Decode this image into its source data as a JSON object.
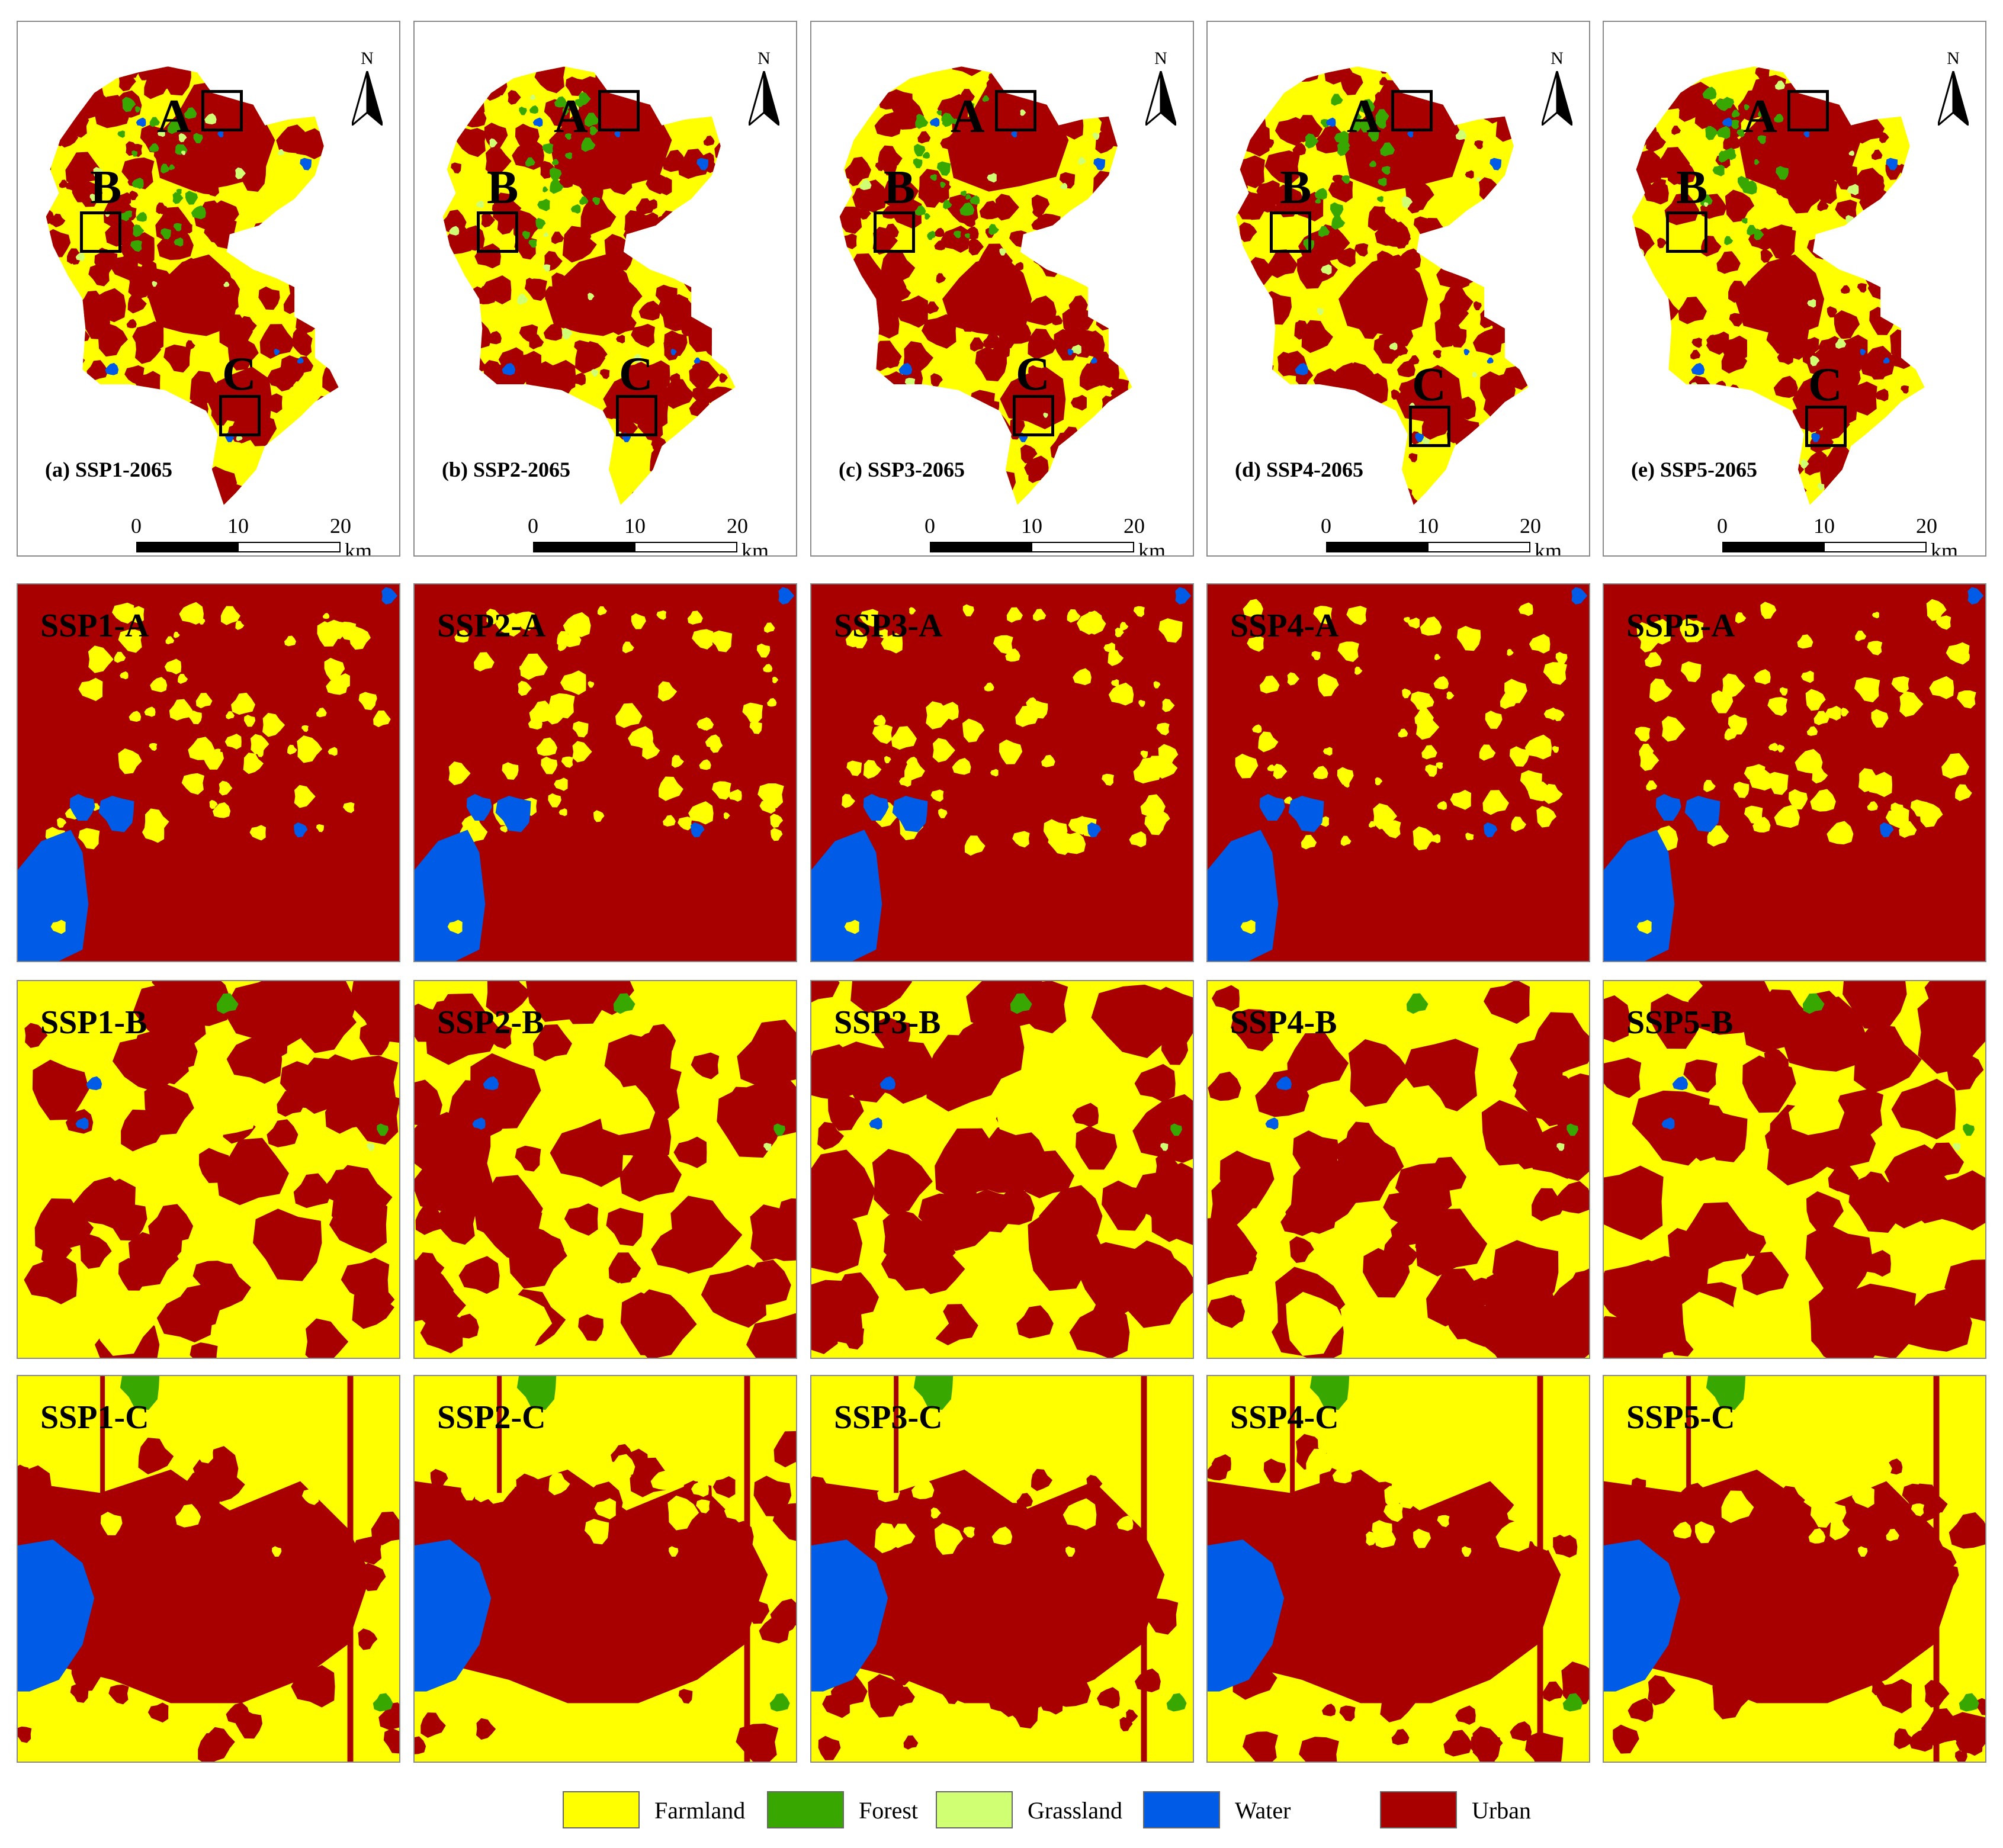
{
  "classes": {
    "farmland": {
      "label": "Farmland",
      "color": "#FFFF00"
    },
    "forest": {
      "label": "Forest",
      "color": "#38A800"
    },
    "grassland": {
      "label": "Grassland",
      "color": "#D1FF73"
    },
    "water": {
      "label": "Water",
      "color": "#005CE6"
    },
    "urban": {
      "label": "Urban",
      "color": "#A80000"
    }
  },
  "legend": [
    "farmland",
    "forest",
    "grassland",
    "water",
    "urban"
  ],
  "north_label": "N",
  "scale": {
    "ticks": [
      "0",
      "10",
      "20"
    ],
    "unit": "km"
  },
  "zoom_letters": [
    "A",
    "B",
    "C"
  ],
  "scenarios": [
    {
      "caption": "(a) SSP1-2065",
      "insets": [
        "SSP1-A",
        "SSP1-B",
        "SSP1-C"
      ]
    },
    {
      "caption": "(b) SSP2-2065",
      "insets": [
        "SSP2-A",
        "SSP2-B",
        "SSP2-C"
      ]
    },
    {
      "caption": "(c) SSP3-2065",
      "insets": [
        "SSP3-A",
        "SSP3-B",
        "SSP3-C"
      ]
    },
    {
      "caption": "(d) SSP4-2065",
      "insets": [
        "SSP4-A",
        "SSP4-B",
        "SSP4-C"
      ]
    },
    {
      "caption": "(e) SSP5-2065",
      "insets": [
        "SSP5-A",
        "SSP5-B",
        "SSP5-C"
      ]
    }
  ]
}
